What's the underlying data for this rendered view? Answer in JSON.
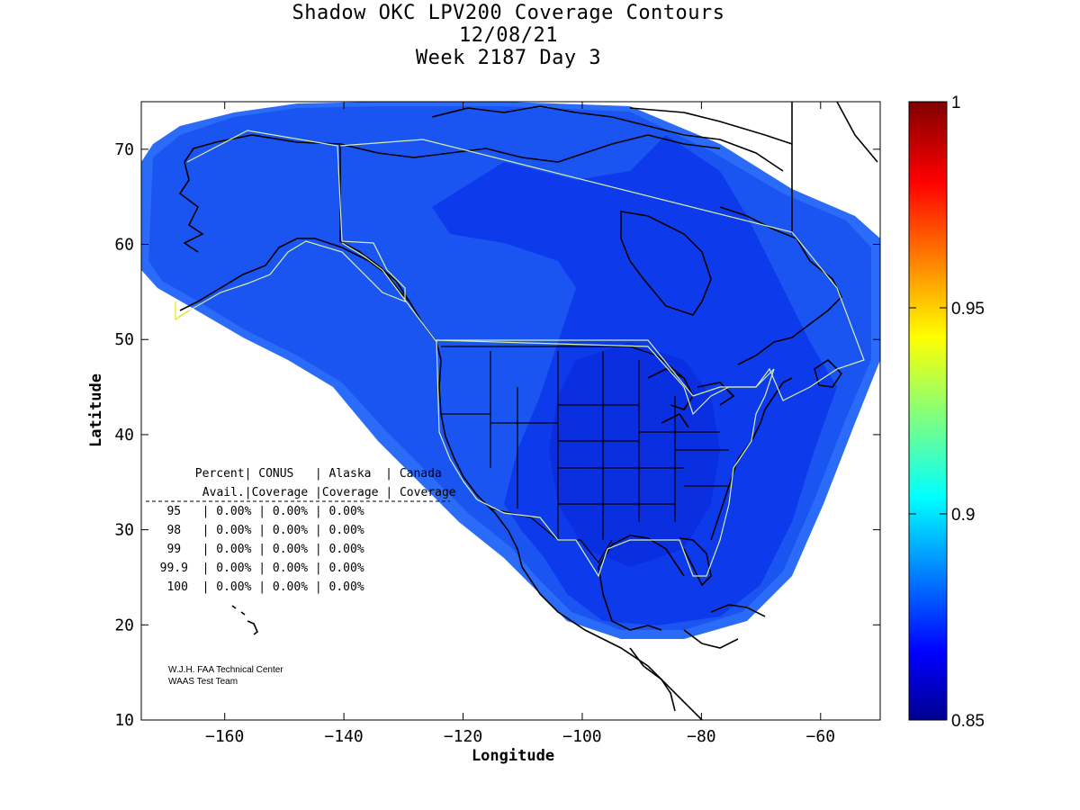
{
  "title": {
    "line1": "Shadow OKC LPV200 Coverage Contours",
    "line2": "12/08/21",
    "line3": "Week 2187 Day 3"
  },
  "axes": {
    "xlabel": "Longitude",
    "ylabel": "Latitude",
    "x_ticks": [
      -160,
      -140,
      -120,
      -100,
      -80,
      -60
    ],
    "y_ticks": [
      10,
      20,
      30,
      40,
      50,
      60,
      70
    ],
    "xlim": [
      -174,
      -50
    ],
    "ylim": [
      10,
      75
    ]
  },
  "colorbar": {
    "ticks": [
      "1",
      "0.95",
      "0.9",
      "0.85"
    ],
    "range": [
      0.85,
      1
    ],
    "colormap": "jet"
  },
  "table": {
    "header1": [
      "Percent",
      "CONUS",
      "Alaska",
      "Canada"
    ],
    "header2": [
      "Avail.",
      "Coverage",
      "Coverage",
      "Coverage"
    ],
    "rows": [
      {
        "percent": "95",
        "conus": "0.00%",
        "alaska": "0.00%",
        "canada": "0.00%"
      },
      {
        "percent": "98",
        "conus": "0.00%",
        "alaska": "0.00%",
        "canada": "0.00%"
      },
      {
        "percent": "99",
        "conus": "0.00%",
        "alaska": "0.00%",
        "canada": "0.00%"
      },
      {
        "percent": "99.9",
        "conus": "0.00%",
        "alaska": "0.00%",
        "canada": "0.00%"
      },
      {
        "percent": "100",
        "conus": "0.00%",
        "alaska": "0.00%",
        "canada": "0.00%"
      }
    ]
  },
  "credit": {
    "line1": "W.J.H. FAA Technical Center",
    "line2": "WAAS Test Team"
  },
  "colors": {
    "outer": "#1e5ef5",
    "mid": "#0f3ff0",
    "inner": "#082ee0",
    "land_outline": "#000000",
    "service_volume": "#d8f0b0"
  }
}
